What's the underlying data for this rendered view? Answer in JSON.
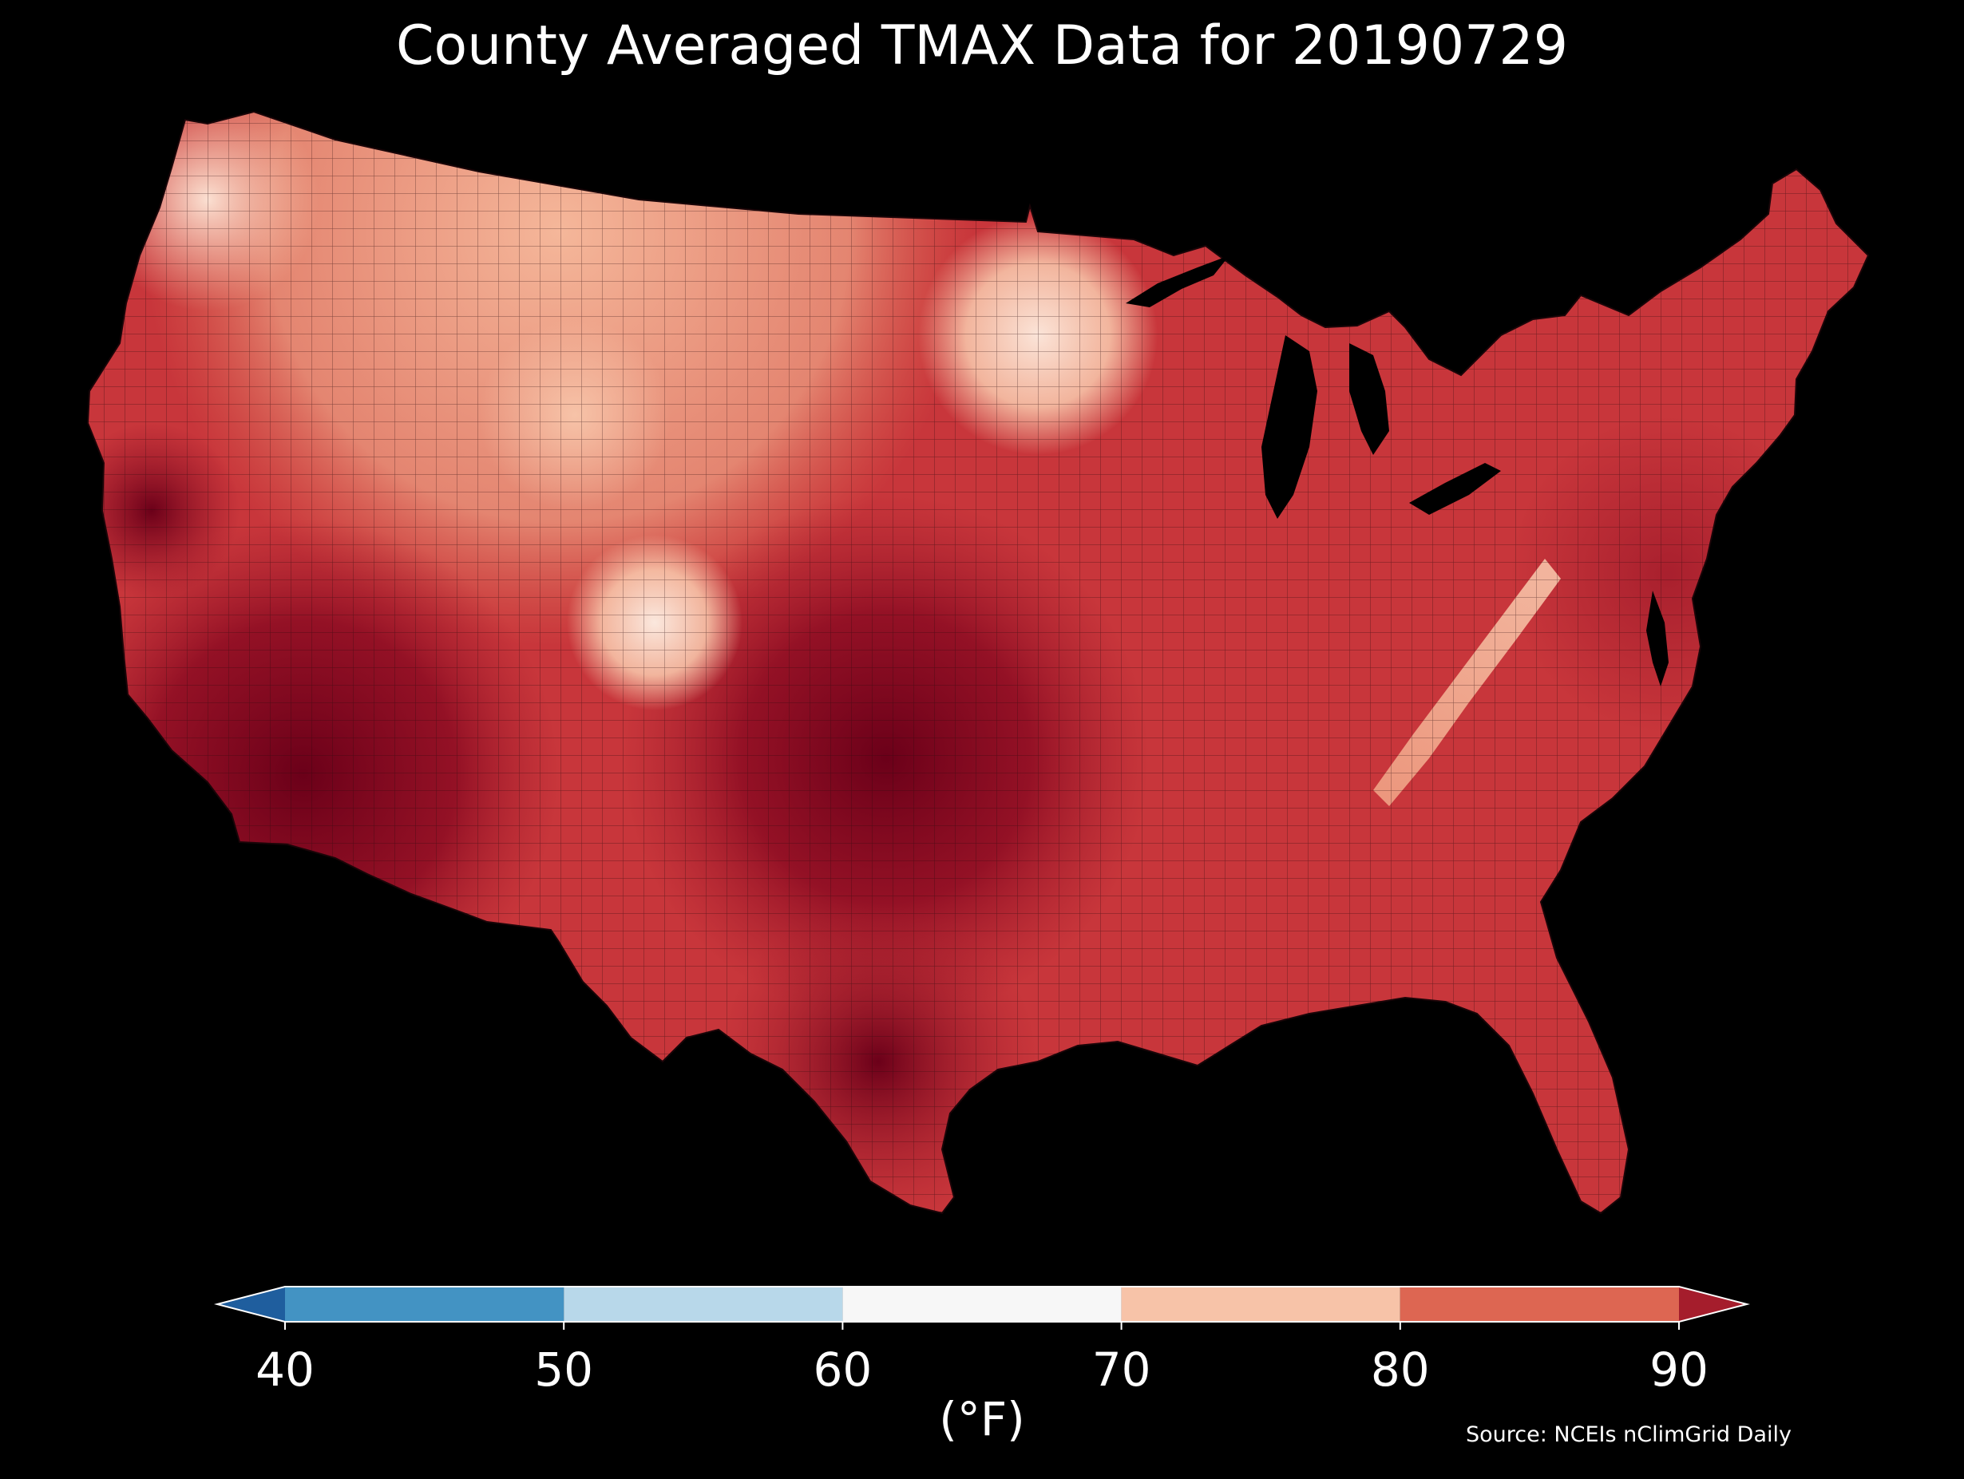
{
  "title": "County Averaged TMAX Data for 20190729",
  "source": "Source: NCEIs nClimGrid Daily",
  "colorbar": {
    "unit_label": "(°F)",
    "ticks": [
      "40",
      "50",
      "60",
      "70",
      "80",
      "90"
    ],
    "tick_values": [
      40,
      50,
      60,
      70,
      80,
      90
    ],
    "min": 40,
    "max": 90,
    "extend": "both",
    "bins": [
      {
        "from": 40,
        "to": 50,
        "color": "#4393c3"
      },
      {
        "from": 50,
        "to": 60,
        "color": "#b8d8ea"
      },
      {
        "from": 60,
        "to": 70,
        "color": "#f7f7f7"
      },
      {
        "from": 70,
        "to": 80,
        "color": "#f7c3a8"
      },
      {
        "from": 80,
        "to": 90,
        "color": "#dd6652"
      }
    ],
    "under_color": "#1f5e9e",
    "over_color": "#a51d2c"
  },
  "map": {
    "region": "Contiguous United States",
    "unit": "county",
    "variable": "TMAX",
    "background_color": "#000000",
    "ocean_color": "#000000",
    "boundary_color": "#1a0508"
  }
}
